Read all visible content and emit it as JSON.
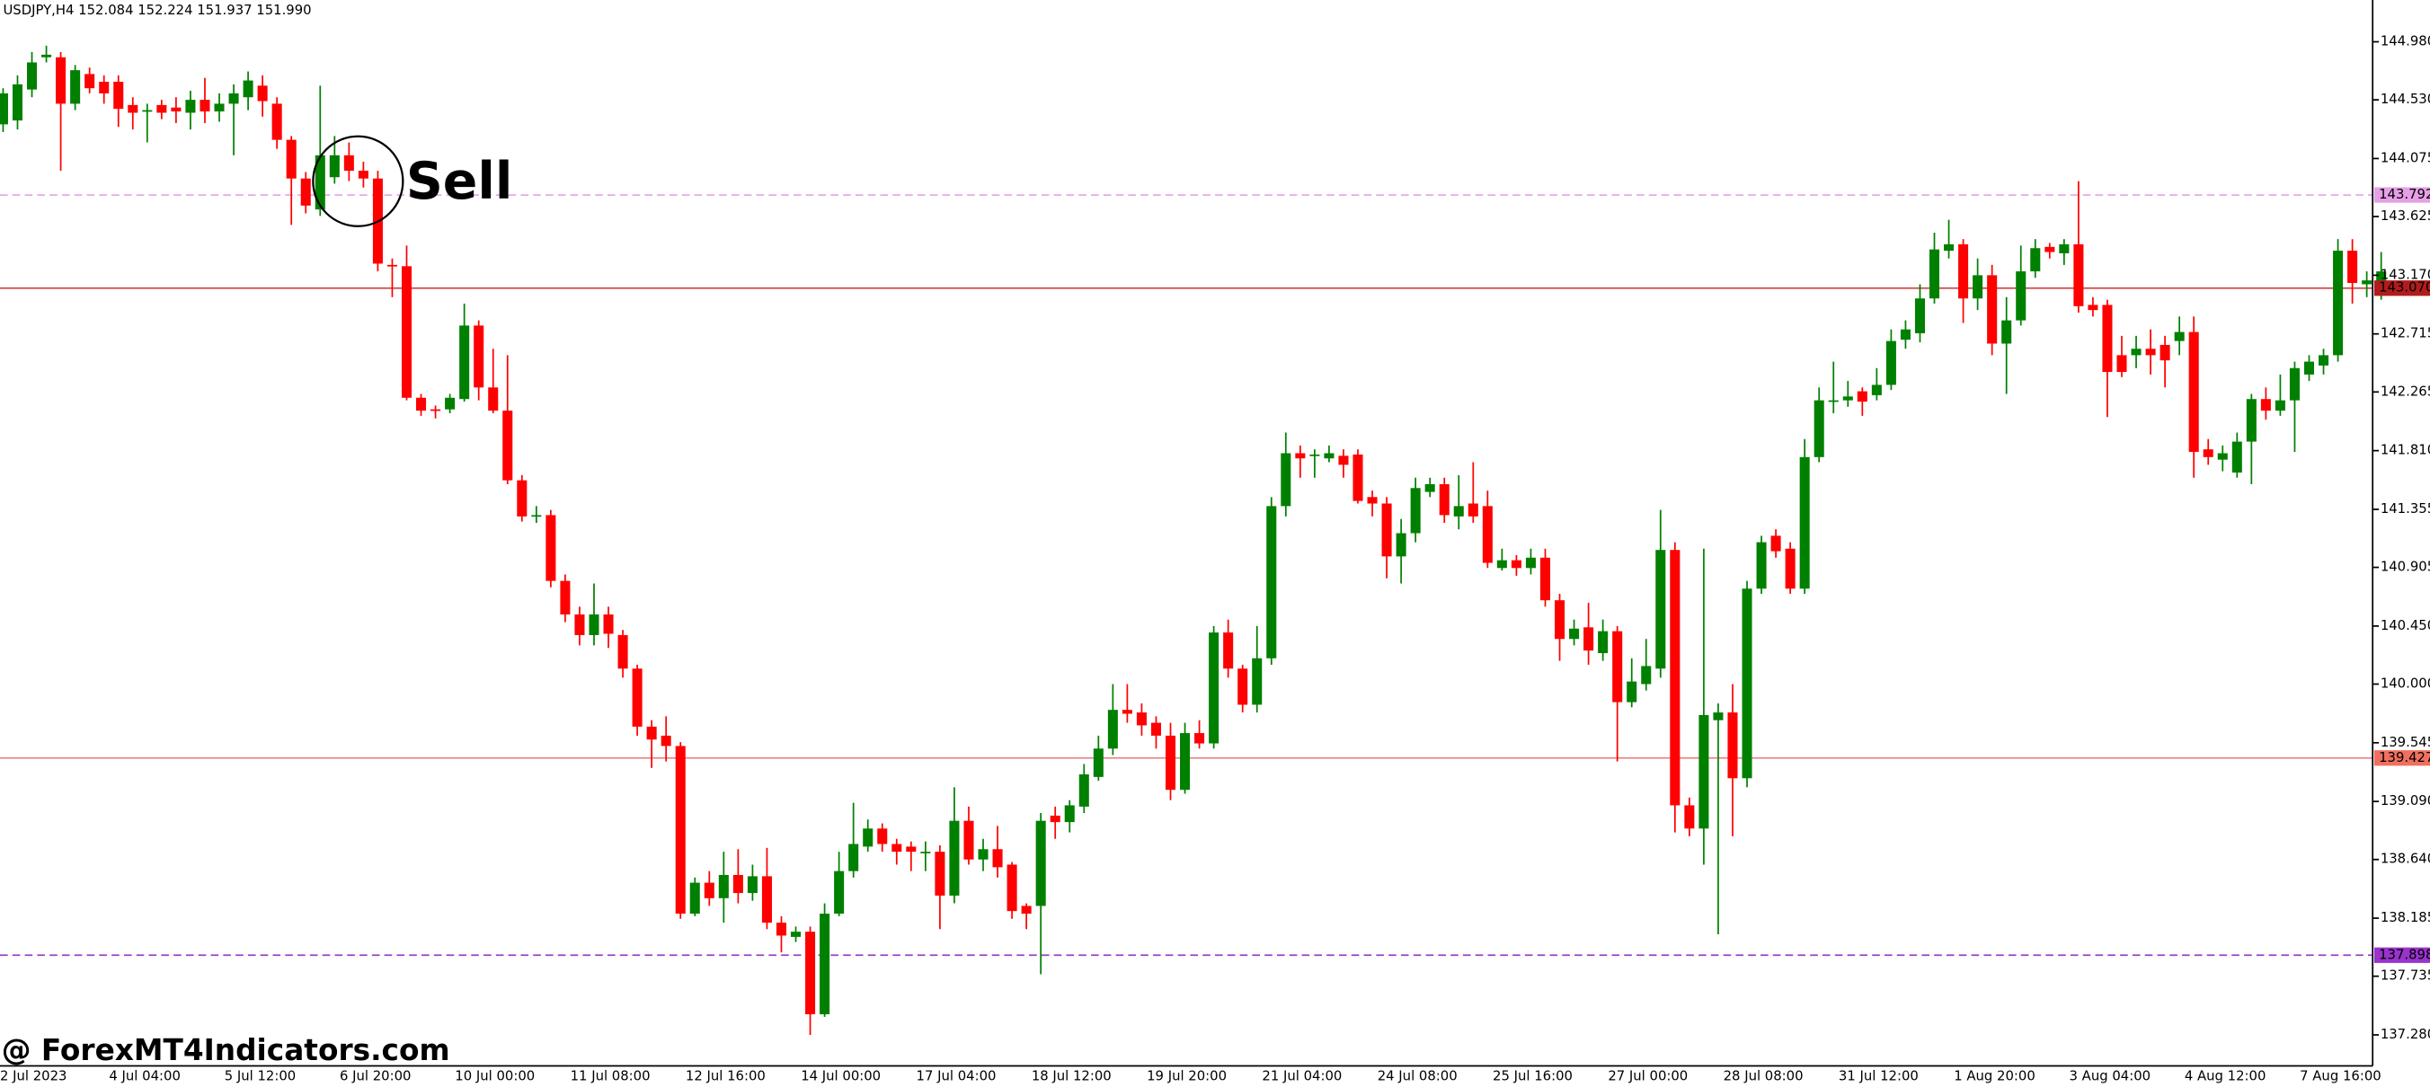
{
  "chart_data": {
    "type": "candlestick",
    "header": "USDJPY,H4  152.084 152.224 151.937 151.990",
    "annotation": "Sell",
    "watermark": "@ ForexMT4Indicators.com",
    "up_color": "#008000",
    "down_color": "#ff0000",
    "grid": false,
    "ylim": [
      137.04,
      145.304
    ],
    "yticks": [
      {
        "value": 144.98,
        "label": "144.980"
      },
      {
        "value": 144.53,
        "label": "144.530"
      },
      144.075,
      143.625,
      {
        "value": 143.17,
        "label": "143.170"
      },
      142.715,
      142.265,
      {
        "value": 141.81,
        "label": "141.810"
      },
      141.355,
      140.905,
      {
        "value": 140.45,
        "label": "140.450"
      },
      {
        "value": 140,
        "label": "140.000"
      },
      139.545,
      {
        "value": 139.09,
        "label": "139.090"
      },
      {
        "value": 138.64,
        "label": "138.640"
      },
      138.185,
      137.735,
      {
        "value": 137.28,
        "label": "137.280"
      }
    ],
    "levels": [
      {
        "value": 143.792,
        "color": "#e8a8e8",
        "box_color": "#e6a0e6",
        "dashed": true
      },
      {
        "value": 143.07,
        "label": "143.070",
        "color": "#d04848",
        "box_color": "#b01c1c",
        "dashed": false
      },
      {
        "value": 139.427,
        "color": "#e88888",
        "box_color": "#f07060",
        "dashed": false
      },
      {
        "value": 137.898,
        "color": "#9a40c8",
        "box_color": "#9933cc",
        "dashed": true
      }
    ],
    "categories": [
      "2 Jul 2023",
      null,
      null,
      null,
      null,
      null,
      null,
      null,
      "4 Jul 04:00",
      null,
      null,
      null,
      null,
      null,
      null,
      null,
      "5 Jul 12:00",
      null,
      null,
      null,
      null,
      null,
      null,
      null,
      "6 Jul 20:00",
      null,
      null,
      null,
      null,
      null,
      null,
      null,
      "10 Jul 00:00",
      null,
      null,
      null,
      null,
      null,
      null,
      null,
      "11 Jul 08:00",
      null,
      null,
      null,
      null,
      null,
      null,
      null,
      "12 Jul 16:00",
      null,
      null,
      null,
      null,
      null,
      null,
      null,
      "14 Jul 00:00",
      null,
      null,
      null,
      null,
      null,
      null,
      null,
      "17 Jul 04:00",
      null,
      null,
      null,
      null,
      null,
      null,
      null,
      "18 Jul 12:00",
      null,
      null,
      null,
      null,
      null,
      null,
      null,
      "19 Jul 20:00",
      null,
      null,
      null,
      null,
      null,
      null,
      null,
      "21 Jul 04:00",
      null,
      null,
      null,
      null,
      null,
      null,
      null,
      "24 Jul 08:00",
      null,
      null,
      null,
      null,
      null,
      null,
      null,
      "25 Jul 16:00",
      null,
      null,
      null,
      null,
      null,
      null,
      null,
      "27 Jul 00:00",
      null,
      null,
      null,
      null,
      null,
      null,
      null,
      "28 Jul 08:00",
      null,
      null,
      null,
      null,
      null,
      null,
      null,
      "31 Jul 12:00",
      null,
      null,
      null,
      null,
      null,
      null,
      null,
      "1 Aug 20:00",
      null,
      null,
      null,
      null,
      null,
      null,
      null,
      "3 Aug 04:00",
      null,
      null,
      null,
      null,
      null,
      null,
      null,
      "4 Aug 12:00",
      null,
      null,
      null,
      null,
      null,
      null,
      null,
      "7 Aug 16:00",
      null,
      null,
      null,
      null,
      null
    ],
    "open": [
      144.34,
      144.37,
      144.61,
      144.86,
      144.86,
      144.5,
      144.73,
      144.67,
      144.67,
      144.49,
      144.44,
      144.49,
      144.47,
      144.43,
      144.53,
      144.44,
      144.5,
      144.55,
      144.64,
      144.5,
      144.22,
      143.92,
      143.68,
      143.93,
      144.1,
      143.98,
      143.92,
      143.25,
      143.24,
      142.22,
      142.13,
      142.13,
      142.21,
      142.78,
      142.3,
      142.12,
      141.58,
      141.31,
      141.31,
      140.8,
      140.54,
      140.38,
      140.54,
      140.38,
      140.12,
      139.67,
      139.6,
      139.52,
      138.22,
      138.46,
      138.34,
      138.52,
      138.38,
      138.51,
      138.15,
      138.04,
      138.08,
      137.44,
      138.22,
      138.55,
      138.74,
      138.88,
      138.76,
      138.74,
      138.7,
      138.7,
      138.36,
      138.94,
      138.64,
      138.72,
      138.6,
      138.28,
      138.28,
      138.98,
      138.93,
      139.05,
      139.28,
      139.5,
      139.8,
      139.78,
      139.7,
      139.6,
      139.18,
      139.62,
      139.54,
      140.4,
      140.12,
      139.84,
      140.2,
      141.38,
      141.79,
      141.77,
      141.75,
      141.77,
      141.78,
      141.45,
      141.4,
      140.99,
      141.17,
      141.49,
      141.55,
      141.3,
      141.4,
      141.38,
      140.9,
      140.96,
      140.9,
      140.98,
      140.65,
      140.35,
      140.44,
      140.24,
      140.41,
      139.86,
      140.0,
      140.12,
      141.04,
      139.06,
      138.88,
      139.72,
      139.78,
      139.27,
      140.74,
      141.15,
      141.05,
      140.74,
      141.76,
      142.19,
      142.2,
      142.27,
      142.24,
      142.32,
      142.67,
      142.72,
      142.99,
      143.36,
      143.41,
      142.99,
      143.17,
      142.64,
      142.82,
      143.2,
      143.39,
      143.34,
      143.41,
      142.94,
      142.94,
      142.55,
      142.55,
      142.6,
      142.63,
      142.66,
      142.73,
      141.82,
      141.74,
      141.64,
      141.88,
      142.21,
      142.12,
      142.2,
      142.4,
      142.47,
      142.55,
      143.36,
      143.1,
      143.12
    ],
    "high": [
      144.62,
      144.72,
      144.9,
      144.95,
      144.9,
      144.8,
      144.78,
      144.72,
      144.72,
      144.55,
      144.5,
      144.53,
      144.55,
      144.6,
      144.7,
      144.58,
      144.65,
      144.75,
      144.72,
      144.55,
      144.25,
      143.97,
      144.64,
      144.25,
      144.2,
      144.05,
      143.98,
      143.3,
      143.4,
      142.25,
      142.16,
      142.25,
      142.95,
      142.82,
      142.6,
      142.55,
      141.62,
      141.38,
      141.35,
      140.85,
      140.6,
      140.78,
      140.6,
      140.42,
      140.15,
      139.72,
      139.75,
      139.55,
      138.5,
      138.55,
      138.7,
      138.72,
      138.6,
      138.73,
      138.2,
      138.12,
      138.12,
      138.3,
      138.7,
      139.08,
      138.95,
      138.92,
      138.8,
      138.78,
      138.78,
      138.75,
      139.2,
      139.05,
      138.8,
      138.9,
      138.62,
      138.3,
      139.0,
      139.05,
      139.1,
      139.38,
      139.6,
      140.0,
      140.0,
      139.85,
      139.75,
      139.7,
      139.7,
      139.72,
      140.45,
      140.5,
      140.15,
      140.45,
      141.45,
      141.95,
      141.85,
      141.82,
      141.85,
      141.82,
      141.82,
      141.5,
      141.45,
      141.28,
      141.6,
      141.6,
      141.6,
      141.62,
      141.72,
      141.5,
      141.05,
      141.0,
      141.05,
      141.05,
      140.7,
      140.5,
      140.63,
      140.5,
      140.45,
      140.2,
      140.35,
      141.35,
      141.1,
      139.12,
      141.05,
      139.85,
      140.0,
      140.8,
      141.15,
      141.2,
      141.1,
      141.9,
      142.3,
      142.5,
      142.35,
      142.3,
      142.45,
      142.75,
      142.82,
      143.1,
      143.5,
      143.6,
      143.45,
      143.3,
      143.25,
      143.0,
      143.4,
      143.45,
      143.42,
      143.45,
      143.9,
      143.0,
      142.98,
      142.7,
      142.7,
      142.75,
      142.7,
      142.85,
      142.85,
      141.9,
      141.85,
      141.95,
      142.25,
      142.3,
      142.4,
      142.5,
      142.55,
      142.6,
      143.45,
      143.45,
      143.2,
      143.35
    ],
    "low": [
      144.28,
      144.3,
      144.55,
      144.82,
      143.98,
      144.45,
      144.58,
      144.5,
      144.32,
      144.3,
      144.2,
      144.38,
      144.35,
      144.3,
      144.35,
      144.36,
      144.1,
      144.45,
      144.4,
      144.15,
      143.56,
      143.65,
      143.63,
      143.88,
      143.9,
      143.85,
      143.2,
      143.0,
      142.2,
      142.08,
      142.06,
      142.1,
      142.19,
      142.2,
      142.1,
      141.55,
      141.26,
      141.25,
      140.75,
      140.48,
      140.3,
      140.3,
      140.28,
      140.05,
      139.6,
      139.35,
      139.4,
      138.18,
      138.2,
      138.28,
      138.15,
      138.3,
      138.32,
      138.1,
      137.92,
      138.0,
      137.28,
      137.42,
      138.2,
      138.5,
      138.7,
      138.7,
      138.6,
      138.55,
      138.55,
      138.1,
      138.3,
      138.6,
      138.55,
      138.5,
      138.18,
      138.1,
      137.75,
      138.8,
      138.85,
      139.0,
      139.25,
      139.45,
      139.7,
      139.6,
      139.5,
      139.1,
      139.15,
      139.5,
      139.5,
      140.05,
      139.78,
      139.78,
      140.15,
      141.3,
      141.6,
      141.6,
      141.72,
      141.6,
      141.4,
      141.3,
      140.82,
      140.78,
      141.1,
      141.45,
      141.25,
      141.2,
      141.25,
      140.9,
      140.88,
      140.84,
      140.85,
      140.6,
      140.18,
      140.3,
      140.15,
      140.18,
      139.4,
      139.82,
      139.95,
      140.05,
      138.85,
      138.82,
      138.6,
      138.06,
      138.82,
      139.2,
      140.7,
      140.98,
      140.7,
      140.7,
      141.72,
      142.1,
      142.15,
      142.08,
      142.2,
      142.28,
      142.6,
      142.65,
      142.95,
      143.3,
      142.8,
      142.9,
      142.55,
      142.25,
      142.78,
      143.15,
      143.3,
      143.25,
      142.88,
      142.85,
      142.07,
      142.38,
      142.45,
      142.4,
      142.3,
      142.55,
      141.6,
      141.7,
      141.65,
      141.6,
      141.55,
      142.05,
      142.08,
      141.8,
      142.35,
      142.4,
      142.5,
      142.95,
      143.0,
      142.98
    ],
    "close": [
      144.58,
      144.65,
      144.82,
      144.88,
      144.5,
      144.76,
      144.62,
      144.58,
      144.46,
      144.43,
      144.45,
      144.43,
      144.44,
      144.53,
      144.44,
      144.5,
      144.58,
      144.68,
      144.52,
      144.22,
      143.92,
      143.71,
      144.1,
      144.1,
      143.98,
      143.92,
      143.26,
      143.24,
      142.22,
      142.12,
      142.12,
      142.22,
      142.78,
      142.3,
      142.12,
      141.58,
      141.3,
      141.31,
      140.8,
      140.54,
      140.38,
      140.54,
      140.39,
      140.12,
      139.67,
      139.57,
      139.52,
      138.22,
      138.46,
      138.34,
      138.52,
      138.38,
      138.51,
      138.15,
      138.05,
      138.08,
      137.44,
      138.22,
      138.55,
      138.76,
      138.88,
      138.76,
      138.7,
      138.7,
      138.7,
      138.36,
      138.94,
      138.64,
      138.72,
      138.58,
      138.24,
      138.22,
      138.94,
      138.93,
      139.06,
      139.3,
      139.5,
      139.8,
      139.77,
      139.68,
      139.6,
      139.18,
      139.62,
      139.54,
      140.4,
      140.12,
      139.84,
      140.2,
      141.38,
      141.79,
      141.75,
      141.78,
      141.79,
      141.7,
      141.42,
      141.4,
      140.99,
      141.17,
      141.52,
      141.55,
      141.31,
      141.38,
      141.3,
      140.94,
      140.96,
      140.9,
      140.98,
      140.65,
      140.35,
      140.43,
      140.26,
      140.41,
      139.86,
      140.02,
      140.14,
      141.04,
      139.06,
      138.88,
      139.76,
      139.78,
      139.27,
      140.74,
      141.1,
      141.03,
      140.74,
      141.76,
      142.2,
      142.2,
      142.23,
      142.19,
      142.32,
      142.66,
      142.75,
      142.99,
      143.37,
      143.41,
      142.99,
      143.17,
      142.64,
      142.82,
      143.2,
      143.38,
      143.35,
      143.41,
      142.93,
      142.9,
      142.42,
      142.42,
      142.6,
      142.55,
      142.51,
      142.73,
      141.8,
      141.76,
      141.79,
      141.88,
      142.21,
      142.12,
      142.2,
      142.45,
      142.5,
      142.55,
      143.36,
      143.11,
      143.13,
      143.2
    ]
  }
}
